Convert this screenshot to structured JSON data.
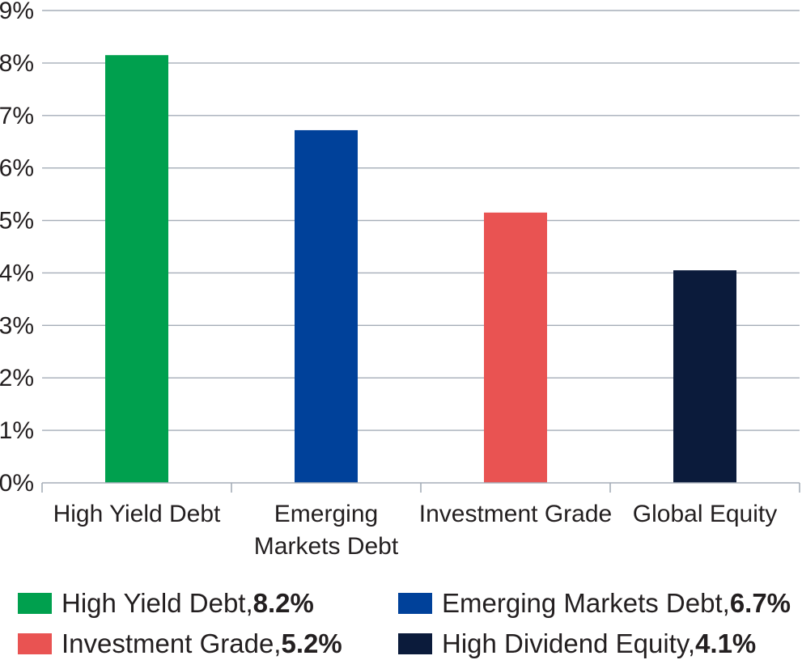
{
  "chart_data": {
    "type": "bar",
    "categories": [
      "High Yield Debt",
      "Emerging Markets Debt",
      "Investment Grade",
      "Global Equity"
    ],
    "category_lines": [
      [
        "High Yield Debt"
      ],
      [
        "Emerging",
        "Markets Debt"
      ],
      [
        "Investment Grade"
      ],
      [
        "Global Equity"
      ]
    ],
    "values": [
      8.15,
      6.72,
      5.15,
      4.05
    ],
    "colors": [
      "#00a04e",
      "#00419a",
      "#e95352",
      "#0b1b3b"
    ],
    "ylim": [
      0,
      9
    ],
    "yticks": [
      "0%",
      "1%",
      "2%",
      "3%",
      "4%",
      "5%",
      "6%",
      "7%",
      "8%",
      "9%"
    ],
    "grid": true,
    "legend_position": "bottom",
    "legend": [
      {
        "label": "High Yield Debt, ",
        "value": "8.2%",
        "color": "#00a04e"
      },
      {
        "label": "Emerging Markets Debt, ",
        "value": "6.7%",
        "color": "#00419a"
      },
      {
        "label": "Investment Grade, ",
        "value": "5.2%",
        "color": "#e95352"
      },
      {
        "label": "High Dividend Equity, ",
        "value": "4.1%",
        "color": "#0b1b3b"
      }
    ],
    "title": "",
    "xlabel": "",
    "ylabel": ""
  }
}
